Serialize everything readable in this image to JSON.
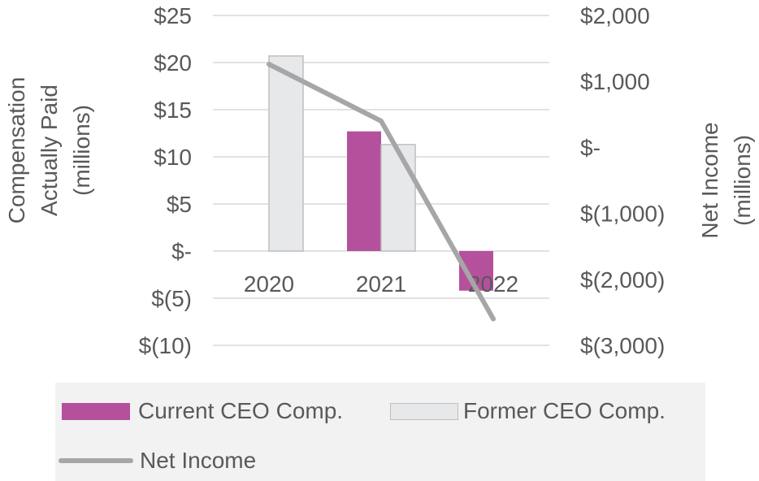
{
  "colors": {
    "current": "#b5519c",
    "former": "#e7e8ea",
    "line": "#a6a6a6",
    "text": "#595959",
    "grid": "#d9d9d9"
  },
  "chart_data": {
    "type": "bar",
    "categories": [
      "2020",
      "2021",
      "2022"
    ],
    "series": [
      {
        "name": "Current CEO Comp.",
        "axis": "left",
        "type": "bar",
        "values": [
          0,
          12.7,
          -4.2
        ]
      },
      {
        "name": "Former CEO Comp.",
        "axis": "left",
        "type": "bar",
        "values": [
          20.7,
          11.3,
          0
        ]
      },
      {
        "name": "Net Income",
        "axis": "right",
        "type": "line",
        "values": [
          1260,
          400,
          -2600
        ]
      }
    ],
    "left_axis": {
      "label_lines": [
        "Compensation",
        "Actually Paid",
        "(millions)"
      ],
      "ylim": [
        -10,
        25
      ],
      "ticks": [
        25,
        20,
        15,
        10,
        5,
        0,
        -5,
        -10
      ],
      "tick_labels": [
        "$25",
        "$20",
        "$15",
        "$10",
        "$5",
        "$-",
        "$(5)",
        "$(10)"
      ]
    },
    "right_axis": {
      "label_lines": [
        "Net Income",
        "(millions)"
      ],
      "ylim": [
        -3000,
        2000
      ],
      "ticks": [
        2000,
        1000,
        0,
        -1000,
        -2000,
        -3000
      ],
      "tick_labels": [
        "$2,000",
        "$1,000",
        "$-",
        "$(1,000)",
        "$(2,000)",
        "$(3,000)"
      ]
    },
    "grid": true,
    "legend": {
      "position": "bottom",
      "items": [
        "Current CEO Comp.",
        "Former CEO Comp.",
        "Net Income"
      ]
    }
  }
}
